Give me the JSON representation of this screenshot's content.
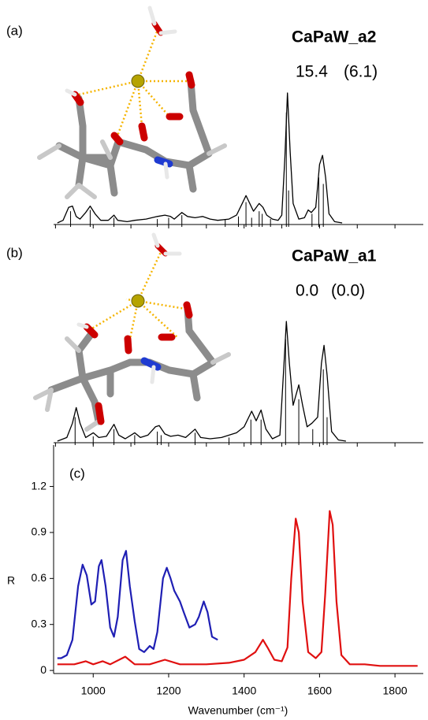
{
  "chart_data": [
    {
      "type": "line",
      "panel": "(a)",
      "title": "CaPaW_a2",
      "annotations": [
        "15.4",
        "(6.1)"
      ],
      "xlim": [
        895,
        1875
      ],
      "ylim": [
        0,
        1
      ],
      "xticks": [
        900,
        1000,
        1100,
        1200,
        1300,
        1400,
        1500,
        1600,
        1700,
        1800
      ],
      "series": [
        {
          "color": "#000000",
          "x": [
            905,
            920,
            935,
            945,
            955,
            965,
            980,
            992,
            1005,
            1020,
            1040,
            1055,
            1065,
            1090,
            1110,
            1140,
            1170,
            1190,
            1205,
            1215,
            1235,
            1250,
            1270,
            1290,
            1310,
            1330,
            1360,
            1380,
            1395,
            1405,
            1415,
            1425,
            1440,
            1450,
            1460,
            1475,
            1490,
            1500,
            1508,
            1515,
            1522,
            1530,
            1545,
            1560,
            1570,
            1578,
            1590,
            1600,
            1608,
            1616,
            1625,
            1640,
            1660
          ],
          "values": [
            0.0,
            0.02,
            0.12,
            0.13,
            0.05,
            0.03,
            0.08,
            0.13,
            0.07,
            0.02,
            0.02,
            0.06,
            0.02,
            0.01,
            0.02,
            0.03,
            0.05,
            0.06,
            0.05,
            0.03,
            0.08,
            0.05,
            0.04,
            0.05,
            0.03,
            0.02,
            0.03,
            0.06,
            0.15,
            0.21,
            0.15,
            0.09,
            0.15,
            0.12,
            0.06,
            0.03,
            0.02,
            0.06,
            0.5,
            1.0,
            0.55,
            0.15,
            0.03,
            0.04,
            0.1,
            0.08,
            0.12,
            0.45,
            0.52,
            0.35,
            0.07,
            0.01,
            0.0
          ]
        }
      ],
      "sticks": {
        "color": "#000000",
        "x": [
          940,
          992,
          1055,
          1170,
          1200,
          1235,
          1350,
          1385,
          1405,
          1420,
          1440,
          1448,
          1470,
          1512,
          1518,
          1580,
          1598,
          1610
        ],
        "values": [
          0.09,
          0.1,
          0.04,
          0.03,
          0.04,
          0.06,
          0.03,
          0.05,
          0.16,
          0.04,
          0.09,
          0.07,
          0.03,
          0.85,
          0.25,
          0.07,
          0.35,
          0.3
        ]
      }
    },
    {
      "type": "line",
      "panel": "(b)",
      "title": "CaPaW_a1",
      "annotations": [
        "0.0",
        "(0.0)"
      ],
      "xlim": [
        895,
        1875
      ],
      "ylim": [
        0,
        1
      ],
      "xticks": [
        900,
        1000,
        1100,
        1200,
        1300,
        1400,
        1500,
        1600,
        1700,
        1800
      ],
      "series": [
        {
          "color": "#000000",
          "x": [
            905,
            930,
            945,
            955,
            965,
            980,
            1000,
            1015,
            1035,
            1055,
            1068,
            1085,
            1110,
            1125,
            1145,
            1165,
            1175,
            1190,
            1205,
            1225,
            1245,
            1270,
            1285,
            1310,
            1340,
            1360,
            1380,
            1400,
            1420,
            1432,
            1445,
            1458,
            1475,
            1495,
            1505,
            1512,
            1520,
            1530,
            1545,
            1555,
            1567,
            1580,
            1595,
            1605,
            1612,
            1620,
            1632,
            1650,
            1670
          ],
          "values": [
            0.0,
            0.03,
            0.15,
            0.28,
            0.15,
            0.03,
            0.07,
            0.03,
            0.04,
            0.14,
            0.05,
            0.02,
            0.07,
            0.03,
            0.05,
            0.12,
            0.13,
            0.06,
            0.04,
            0.05,
            0.03,
            0.1,
            0.03,
            0.02,
            0.03,
            0.05,
            0.07,
            0.12,
            0.25,
            0.17,
            0.26,
            0.1,
            0.02,
            0.05,
            0.6,
            1.0,
            0.65,
            0.3,
            0.47,
            0.3,
            0.12,
            0.15,
            0.2,
            0.65,
            0.8,
            0.55,
            0.08,
            0.01,
            0.0
          ]
        }
      ],
      "sticks": {
        "color": "#000000",
        "x": [
          952,
          1000,
          1055,
          1110,
          1170,
          1180,
          1270,
          1360,
          1418,
          1445,
          1510,
          1545,
          1582,
          1610,
          1620
        ],
        "values": [
          0.2,
          0.04,
          0.1,
          0.05,
          0.08,
          0.05,
          0.07,
          0.03,
          0.18,
          0.18,
          0.85,
          0.35,
          0.1,
          0.6,
          0.2
        ]
      }
    },
    {
      "type": "line",
      "panel": "(c)",
      "xlabel": "Wavenumber (cm⁻¹)",
      "ylabel": "R",
      "xlim": [
        895,
        1875
      ],
      "ylim": [
        -0.02,
        1.47
      ],
      "xticks": [
        1000,
        1200,
        1400,
        1600,
        1800
      ],
      "yticks": [
        0,
        0.3,
        0.6,
        0.9,
        1.2
      ],
      "series": [
        {
          "color": "#1f1fb4",
          "x": [
            905,
            915,
            930,
            945,
            960,
            972,
            983,
            995,
            1005,
            1015,
            1022,
            1033,
            1045,
            1055,
            1065,
            1078,
            1087,
            1097,
            1110,
            1122,
            1135,
            1150,
            1160,
            1170,
            1185,
            1195,
            1205,
            1215,
            1230,
            1240,
            1255,
            1270,
            1280,
            1293,
            1303,
            1315,
            1330
          ],
          "values": [
            0.08,
            0.08,
            0.1,
            0.2,
            0.55,
            0.69,
            0.62,
            0.43,
            0.45,
            0.68,
            0.72,
            0.55,
            0.28,
            0.22,
            0.35,
            0.72,
            0.78,
            0.55,
            0.32,
            0.14,
            0.12,
            0.16,
            0.14,
            0.25,
            0.6,
            0.67,
            0.6,
            0.52,
            0.45,
            0.38,
            0.28,
            0.3,
            0.35,
            0.45,
            0.38,
            0.22,
            0.2
          ]
        },
        {
          "color": "#e01010",
          "x": [
            905,
            950,
            980,
            1000,
            1025,
            1045,
            1085,
            1110,
            1150,
            1190,
            1230,
            1300,
            1360,
            1400,
            1430,
            1450,
            1462,
            1480,
            1500,
            1515,
            1525,
            1537,
            1545,
            1555,
            1570,
            1590,
            1605,
            1615,
            1627,
            1635,
            1645,
            1658,
            1680,
            1720,
            1760,
            1800,
            1860
          ],
          "values": [
            0.04,
            0.04,
            0.06,
            0.04,
            0.06,
            0.04,
            0.09,
            0.04,
            0.04,
            0.07,
            0.04,
            0.04,
            0.05,
            0.07,
            0.12,
            0.2,
            0.15,
            0.07,
            0.06,
            0.15,
            0.6,
            0.99,
            0.9,
            0.45,
            0.12,
            0.08,
            0.12,
            0.5,
            1.04,
            0.95,
            0.45,
            0.1,
            0.04,
            0.04,
            0.03,
            0.03,
            0.03
          ]
        }
      ]
    }
  ]
}
